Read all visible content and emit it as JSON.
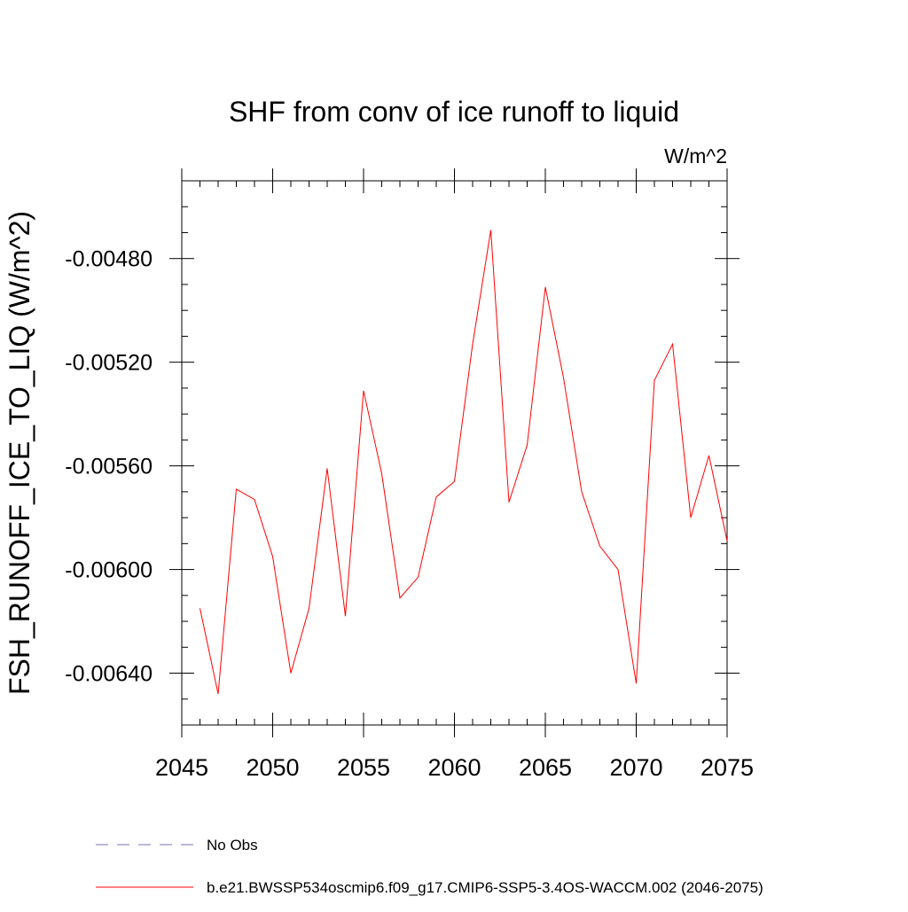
{
  "chart_data": {
    "type": "line",
    "title": "SHF from conv of ice runoff to liquid",
    "units_label": "W/m^2",
    "ylabel": "FSH_RUNOFF_ICE_TO_LIQ  (W/m^2)",
    "xlabel": "",
    "xlim": [
      2045,
      2075
    ],
    "ylim": [
      -0.0066,
      -0.0045
    ],
    "x_ticks": [
      2045,
      2050,
      2055,
      2060,
      2065,
      2070,
      2075
    ],
    "x_tick_labels": [
      "2045",
      "2050",
      "2055",
      "2060",
      "2065",
      "2070",
      "2075"
    ],
    "y_ticks": [
      -0.0064,
      -0.006,
      -0.0056,
      -0.0052,
      -0.0048
    ],
    "y_tick_labels": [
      "-0.00640",
      "-0.00600",
      "-0.00560",
      "-0.00520",
      "-0.00480"
    ],
    "y_minor_step": 0.0001,
    "grid": false,
    "legend_position": "bottom",
    "series": [
      {
        "name": "No Obs",
        "color": "#7b6fb0",
        "style": "dashed",
        "x": [],
        "values": []
      },
      {
        "name": "b.e21.BWSSP534oscmip6.f09_g17.CMIP6-SSP5-3.4OS-WACCM.002 (2046-2075)",
        "color": "#ff0000",
        "style": "solid",
        "x": [
          2046,
          2047,
          2048,
          2049,
          2050,
          2051,
          2052,
          2053,
          2054,
          2055,
          2056,
          2057,
          2058,
          2059,
          2060,
          2061,
          2062,
          2063,
          2064,
          2065,
          2066,
          2067,
          2068,
          2069,
          2070,
          2071,
          2072,
          2073,
          2074,
          2075
        ],
        "values": [
          -0.00615,
          -0.00648,
          -0.00569,
          -0.00573,
          -0.00595,
          -0.0064,
          -0.00615,
          -0.00561,
          -0.00618,
          -0.00531,
          -0.00563,
          -0.00611,
          -0.00603,
          -0.00572,
          -0.00566,
          -0.00513,
          -0.00469,
          -0.00574,
          -0.00552,
          -0.00491,
          -0.00526,
          -0.0057,
          -0.00591,
          -0.006,
          -0.00644,
          -0.00527,
          -0.00513,
          -0.0058,
          -0.00556,
          -0.00589
        ]
      }
    ]
  }
}
